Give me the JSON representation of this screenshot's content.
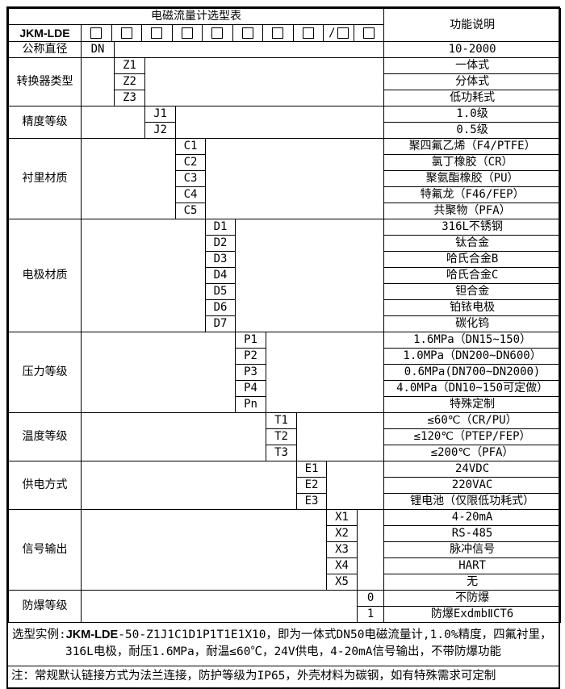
{
  "table": {
    "title": "电磁流量计选型表",
    "function_header": "功能说明",
    "model": "JKM-LDE",
    "checkboxes": [
      {
        "slash": false
      },
      {
        "slash": false
      },
      {
        "slash": false
      },
      {
        "slash": false
      },
      {
        "slash": false
      },
      {
        "slash": false
      },
      {
        "slash": false
      },
      {
        "slash": false
      },
      {
        "slash": true
      },
      {
        "slash": false
      }
    ],
    "sections": [
      {
        "label": "公称直径",
        "code_col": 1,
        "code_align": "left",
        "rows": [
          {
            "code": "DN",
            "desc": "10-2000"
          }
        ]
      },
      {
        "label": "转换器类型",
        "code_col": 2,
        "rows": [
          {
            "code": "Z1",
            "desc": "一体式"
          },
          {
            "code": "Z2",
            "desc": "分体式"
          },
          {
            "code": "Z3",
            "desc": "低功耗式"
          }
        ]
      },
      {
        "label": "精度等级",
        "code_col": 3,
        "rows": [
          {
            "code": "J1",
            "desc": "1.0级"
          },
          {
            "code": "J2",
            "desc": "0.5级"
          }
        ]
      },
      {
        "label": "衬里材质",
        "code_col": 4,
        "rows": [
          {
            "code": "C1",
            "desc": "聚四氟乙烯（F4/PTFE）"
          },
          {
            "code": "C2",
            "desc": "氯丁橡胶（CR）"
          },
          {
            "code": "C3",
            "desc": "聚氨酯橡胶（PU）"
          },
          {
            "code": "C4",
            "desc": "特氟龙（F46/FEP）"
          },
          {
            "code": "C5",
            "desc": "共聚物（PFA）"
          }
        ]
      },
      {
        "label": "电极材质",
        "code_col": 5,
        "rows": [
          {
            "code": "D1",
            "desc": "316L不锈钢"
          },
          {
            "code": "D2",
            "desc": "钛合金"
          },
          {
            "code": "D3",
            "desc": "哈氏合金B"
          },
          {
            "code": "D4",
            "desc": "哈氏合金C"
          },
          {
            "code": "D5",
            "desc": "钽合金"
          },
          {
            "code": "D6",
            "desc": "铂铱电极"
          },
          {
            "code": "D7",
            "desc": "碳化钨"
          }
        ]
      },
      {
        "label": "压力等级",
        "code_col": 6,
        "rows": [
          {
            "code": "P1",
            "desc": "1.6MPa（DN15~150）"
          },
          {
            "code": "P2",
            "desc": "1.0MPa（DN200~DN600）"
          },
          {
            "code": "P3",
            "desc": "0.6MPa(DN700~DN2000)"
          },
          {
            "code": "P4",
            "desc": "4.0MPa（DN10~150可定做）"
          },
          {
            "code": "Pn",
            "desc": "特殊定制"
          }
        ]
      },
      {
        "label": "温度等级",
        "code_col": 7,
        "rows": [
          {
            "code": "T1",
            "desc": "≤60℃（CR/PU）"
          },
          {
            "code": "T2",
            "desc": "≤120℃（PTEP/FEP）"
          },
          {
            "code": "T3",
            "desc": "≤200℃（PFA）"
          }
        ]
      },
      {
        "label": "供电方式",
        "code_col": 8,
        "rows": [
          {
            "code": "E1",
            "desc": "24VDC"
          },
          {
            "code": "E2",
            "desc": "220VAC"
          },
          {
            "code": "E3",
            "desc": "锂电池（仅限低功耗式）"
          }
        ]
      },
      {
        "label": "信号输出",
        "code_col": 9,
        "rows": [
          {
            "code": "X1",
            "desc": "4-20mA"
          },
          {
            "code": "X2",
            "desc": "RS-485"
          },
          {
            "code": "X3",
            "desc": "脉冲信号"
          },
          {
            "code": "X4",
            "desc": "HART"
          },
          {
            "code": "X5",
            "desc": "无"
          }
        ]
      },
      {
        "label": "防爆等级",
        "code_col": 10,
        "rows": [
          {
            "code": "0",
            "desc": "不防爆"
          },
          {
            "code": "1",
            "desc": "防爆ExdmbⅡCT6"
          }
        ]
      }
    ]
  },
  "footer": {
    "example_prefix": "选型实例:",
    "example_model": "JKM-LDE",
    "example_line1_rest": "-50-Z1J1C1D1P1T1E1X10，即为一体式DN50电磁流量计,1.0%精度，四氟衬里，",
    "example_line2": "316L电极，耐压1.6MPa，耐温≤60℃，24V供电，4-20mA信号输出，不带防爆功能",
    "note": "注：常规默认链接方式为法兰连接，防护等级为IP65，外壳材料为碳钢，如有特殊需求可定制"
  },
  "colors": {
    "border": "#000000",
    "background": "#ffffff",
    "text": "#000000"
  }
}
